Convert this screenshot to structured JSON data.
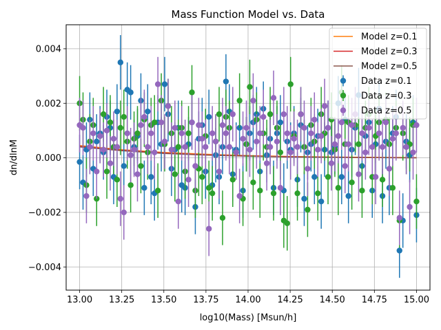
{
  "chart_data": {
    "type": "scatter",
    "title": "Mass Function Model vs. Data",
    "xlabel": "log10(Mass) [Msun/h]",
    "ylabel": "dn/dlnM",
    "xlim": [
      12.92,
      15.08
    ],
    "ylim": [
      -0.00485,
      0.00488
    ],
    "xticks": [
      13.0,
      13.25,
      13.5,
      13.75,
      14.0,
      14.25,
      14.5,
      14.75,
      15.0
    ],
    "xtick_labels": [
      "13.00",
      "13.25",
      "13.50",
      "13.75",
      "14.00",
      "14.25",
      "14.50",
      "14.75",
      "15.00"
    ],
    "yticks": [
      -0.004,
      -0.002,
      0.0,
      0.002,
      0.004
    ],
    "ytick_labels": [
      "−0.004",
      "−0.002",
      "0.000",
      "0.002",
      "0.004"
    ],
    "grid": true,
    "legend_position": "top-right",
    "n_points_per_series": 100,
    "models": [
      {
        "name": "Model z=0.1",
        "color": "#ff7f0e",
        "x": [
          13.0,
          13.25,
          13.5,
          13.75,
          14.0,
          14.25,
          14.5,
          14.75,
          15.0
        ],
        "y": [
          0.00045,
          0.0003,
          0.0002,
          0.00013,
          8e-05,
          5e-05,
          3e-05,
          2e-05,
          1e-05
        ]
      },
      {
        "name": "Model z=0.3",
        "color": "#d62728",
        "x": [
          13.0,
          13.25,
          13.5,
          13.75,
          14.0,
          14.25,
          14.5,
          14.75,
          15.0
        ],
        "y": [
          0.00042,
          0.00028,
          0.00018,
          0.00011,
          7e-05,
          4e-05,
          2e-05,
          1e-05,
          5e-06
        ]
      },
      {
        "name": "Model z=0.5",
        "color": "#8c564b",
        "x": [
          13.0,
          13.25,
          13.5,
          13.75,
          14.0,
          14.25,
          14.5,
          14.75,
          15.0
        ],
        "y": [
          0.0004,
          0.00026,
          0.00016,
          0.0001,
          6e-05,
          3e-05,
          2e-05,
          1e-05,
          0.0
        ]
      }
    ],
    "series": [
      {
        "name": "Data z=0.1",
        "color": "#1f77b4",
        "yerr": 0.001,
        "y": [
          -0.00015,
          -0.0009,
          0.0003,
          0.0014,
          -0.0004,
          0.0006,
          0.0009,
          0.0002,
          0.0015,
          0.0011,
          -0.0007,
          0.0017,
          0.0035,
          -0.0003,
          0.0025,
          0.0024,
          0.0004,
          0.0008,
          0.0021,
          -0.0011,
          0.0017,
          -0.0007,
          -0.0013,
          0.0013,
          0.0005,
          0.0027,
          0.0016,
          -0.0004,
          0.0003,
          0.0011,
          -0.001,
          -0.0011,
          0.0005,
          0.0013,
          -0.0018,
          0.0007,
          0.0012,
          -0.0005,
          0.0015,
          -0.001,
          0.0001,
          -0.0007,
          0.0004,
          0.0028,
          0.0017,
          -0.0006,
          0.0003,
          0.0011,
          -0.0012,
          0.0005,
          0.0009,
          0.0013,
          0.0016,
          -0.0005,
          0.0018,
          0.0001,
          0.0007,
          -0.0011,
          0.0009,
          0.0013,
          -0.0012,
          0.0006,
          0.0003,
          0.0009,
          -0.0008,
          0.0012,
          -0.0015,
          0.0002,
          0.0005,
          -0.0007,
          0.0008,
          -0.0016,
          0.0003,
          0.0011,
          0.0002,
          0.0004,
          0.002,
          -0.0007,
          0.0014,
          -0.0014,
          0.0003,
          0.0011,
          0.0023,
          -0.0003,
          0.0008,
          0.0013,
          -0.0012,
          0.0005,
          0.0018,
          -0.0014,
          0.0006,
          -0.0011,
          0.0009,
          0.0015,
          -0.0034,
          -0.0023,
          0.0006,
          0.0001,
          0.0013,
          -0.0021
        ]
      },
      {
        "name": "Data z=0.3",
        "color": "#2ca02c",
        "yerr": 0.001,
        "y": [
          0.002,
          0.0014,
          -0.001,
          0.0006,
          0.0012,
          -0.0015,
          0.0008,
          0.0016,
          -0.0005,
          0.0013,
          0.0004,
          -0.0008,
          0.0011,
          0.0015,
          0.0006,
          -0.001,
          0.0007,
          0.0009,
          -0.0003,
          0.0014,
          0.0002,
          0.0012,
          0.0013,
          -0.0012,
          0.0021,
          0.0005,
          0.0019,
          0.0009,
          -0.0006,
          0.0004,
          0.0011,
          -0.0005,
          0.0009,
          0.0024,
          -0.0012,
          -0.0004,
          -0.0007,
          0.0008,
          -0.0011,
          -0.0013,
          0.0006,
          0.0016,
          -0.0022,
          0.0015,
          0.0011,
          -0.0008,
          0.0002,
          0.0021,
          -0.0015,
          0.0005,
          0.0026,
          -0.0009,
          0.0014,
          -0.0012,
          0.0009,
          0.0004,
          0.0016,
          -0.0013,
          0.0011,
          0.0002,
          -0.0023,
          -0.0024,
          0.0027,
          0.0008,
          -0.0013,
          0.0016,
          0.0004,
          -0.0019,
          0.0012,
          0.0006,
          -0.0013,
          0.0016,
          0.0009,
          -0.0007,
          0.0014,
          0.0003,
          -0.0011,
          0.0024,
          0.0005,
          0.0013,
          -0.0009,
          0.0012,
          0.0005,
          -0.0012,
          0.0011,
          0.0016,
          -0.0007,
          0.0008,
          0.0013,
          -0.0008,
          0.0014,
          0.0005,
          -0.0011,
          0.0011,
          -0.0023,
          0.0009,
          0.0004,
          0.0005,
          0.0012,
          -0.0016
        ]
      },
      {
        "name": "Data z=0.5",
        "color": "#9467bd",
        "yerr": 0.001,
        "y": [
          0.0012,
          0.0011,
          -0.0014,
          0.0004,
          0.0009,
          -0.0005,
          0.0008,
          0.0003,
          0.001,
          -0.0002,
          0.0007,
          0.0004,
          -0.0015,
          -0.002,
          0.0009,
          0.0001,
          0.0003,
          -0.0006,
          0.0012,
          0.0015,
          0.0004,
          0.0009,
          0.0002,
          0.0027,
          0.0013,
          0.0006,
          0.0019,
          0.0003,
          0.0011,
          -0.0016,
          0.0009,
          0.0004,
          -0.0008,
          0.0013,
          -0.0003,
          0.0012,
          0.0007,
          0.0004,
          -0.0026,
          0.0009,
          0.0006,
          -0.0005,
          0.0012,
          0.0009,
          0.0004,
          0.0016,
          0.0002,
          -0.0014,
          0.0007,
          0.0011,
          0.0003,
          0.0021,
          0.0006,
          0.0009,
          0.0015,
          -0.0002,
          0.0004,
          0.0022,
          0.0006,
          -0.0011,
          0.0016,
          0.0009,
          0.0002,
          0.0007,
          0.0004,
          0.0016,
          0.0011,
          -0.0004,
          0.0009,
          0.0014,
          0.0003,
          0.0008,
          0.0019,
          0.0011,
          -0.0002,
          0.0005,
          0.0008,
          0.0013,
          -0.0003,
          0.0005,
          0.0012,
          0.0016,
          -0.0006,
          0.0009,
          0.0002,
          0.0011,
          0.0004,
          -0.0007,
          0.0009,
          0.0004,
          0.0013,
          -0.0004,
          0.0007,
          0.0009,
          -0.0022,
          0.0011,
          0.0004,
          -0.0018,
          0.0002,
          0.0012
        ]
      }
    ]
  }
}
